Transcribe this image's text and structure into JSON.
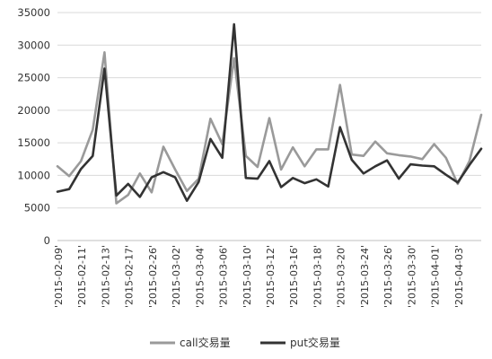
{
  "chart_data": {
    "type": "line",
    "x_ticks": [
      "2015-02-09",
      "2015-02-11",
      "2015-02-13",
      "2015-02-17",
      "2015-02-26",
      "2015-03-02",
      "2015-03-04",
      "2015-03-06",
      "2015-03-10",
      "2015-03-12",
      "2015-03-16",
      "2015-03-18",
      "2015-03-20",
      "2015-03-24",
      "2015-03-26",
      "2015-03-30",
      "2015-04-01",
      "2015-04-03"
    ],
    "x_tick_labels": [
      "'2015-02-09'",
      "'2015-02-11'",
      "'2015-02-13'",
      "'2015-02-17'",
      "'2015-02-26'",
      "'2015-03-02'",
      "'2015-03-04'",
      "'2015-03-06'",
      "'2015-03-10'",
      "'2015-03-12'",
      "'2015-03-16'",
      "'2015-03-18'",
      "'2015-03-20'",
      "'2015-03-24'",
      "'2015-03-26'",
      "'2015-03-30'",
      "'2015-04-01'",
      "'2015-04-03'"
    ],
    "ylim": [
      0,
      35000
    ],
    "y_ticks": [
      0,
      5000,
      10000,
      15000,
      20000,
      25000,
      30000,
      35000
    ],
    "y_tick_labels": [
      "0",
      "5000",
      "10000",
      "15000",
      "20000",
      "25000",
      "30000",
      "35000"
    ],
    "grid": "horizontal",
    "legend_position": "bottom",
    "series": [
      {
        "name": "call交易量",
        "color": "#9a9a9a",
        "values": [
          11400,
          9900,
          12200,
          17000,
          28900,
          5700,
          7000,
          10300,
          7400,
          14400,
          10900,
          7600,
          9500,
          18700,
          14800,
          28000,
          13000,
          11300,
          18800,
          10900,
          14300,
          11400,
          14000,
          14000,
          23900,
          13200,
          13000,
          15200,
          13400,
          13100,
          12900,
          12500,
          14800,
          12700,
          8700,
          12200,
          19300
        ]
      },
      {
        "name": "put交易量",
        "color": "#333333",
        "values": [
          7500,
          7900,
          11000,
          13000,
          26400,
          6900,
          8700,
          6700,
          9700,
          10500,
          9700,
          6100,
          9000,
          15600,
          12700,
          33200,
          9600,
          9500,
          12200,
          8200,
          9600,
          8800,
          9400,
          8300,
          17400,
          12400,
          10300,
          11400,
          12300,
          9500,
          11700,
          11500,
          11400,
          10100,
          8900,
          11600,
          14100
        ]
      }
    ]
  }
}
